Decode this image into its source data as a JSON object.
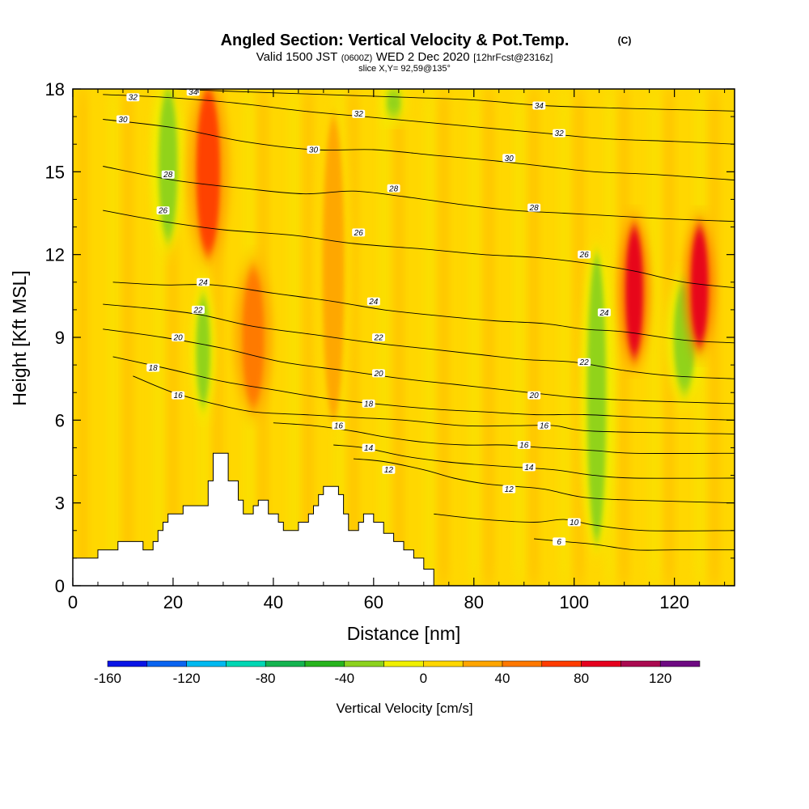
{
  "chart_data": {
    "type": "heatmap",
    "title": "Angled Section: Vertical Velocity & Pot.Temp.",
    "title_unit": "(C)",
    "subtitle_parts": [
      "Valid 1500 JST",
      "(0600Z)",
      "WED 2 Dec 2020",
      "[12hrFcst@2316z]"
    ],
    "slice_label": "slice X,Y= 92,59@135°",
    "xlabel": "Distance [nm]",
    "ylabel": "Height [Kft MSL]",
    "xlim": [
      0,
      132
    ],
    "ylim": [
      0,
      18
    ],
    "x_ticks": [
      0,
      20,
      40,
      60,
      80,
      100,
      120
    ],
    "y_ticks": [
      0,
      3,
      6,
      9,
      12,
      15,
      18
    ],
    "x_tick_labels": [
      "0",
      "20",
      "40",
      "60",
      "80",
      "100",
      "120"
    ],
    "y_tick_labels": [
      "0",
      "3",
      "6",
      "9",
      "12",
      "15",
      "18"
    ],
    "colorbar": {
      "label": "Vertical Velocity [cm/s]",
      "min": -160,
      "max": 140,
      "step": 20,
      "tick_values": [
        -160,
        -120,
        -80,
        -40,
        0,
        40,
        80,
        120
      ],
      "tick_labels": [
        "-160",
        "-120",
        "-80",
        "-40",
        "0",
        "40",
        "80",
        "120"
      ],
      "colors": [
        "#0a14e6",
        "#0a64f0",
        "#00b9f0",
        "#00d7b4",
        "#14b450",
        "#28b41e",
        "#8cd21e",
        "#f0f000",
        "#ffd700",
        "#ffa500",
        "#ff7800",
        "#ff3c00",
        "#e6001e",
        "#aa0a50",
        "#6e0a82"
      ]
    },
    "terrain_profile": [
      [
        0,
        1.0
      ],
      [
        5,
        1.0
      ],
      [
        5,
        1.3
      ],
      [
        9,
        1.3
      ],
      [
        9,
        1.6
      ],
      [
        14,
        1.6
      ],
      [
        14,
        1.3
      ],
      [
        16,
        1.3
      ],
      [
        16,
        1.6
      ],
      [
        17,
        1.6
      ],
      [
        17,
        2.0
      ],
      [
        18,
        2.0
      ],
      [
        18,
        2.3
      ],
      [
        19,
        2.3
      ],
      [
        19,
        2.6
      ],
      [
        22,
        2.6
      ],
      [
        22,
        2.9
      ],
      [
        27,
        2.9
      ],
      [
        27,
        3.8
      ],
      [
        28,
        3.8
      ],
      [
        28,
        4.8
      ],
      [
        31,
        4.8
      ],
      [
        31,
        3.8
      ],
      [
        33,
        3.8
      ],
      [
        33,
        3.1
      ],
      [
        34,
        3.1
      ],
      [
        34,
        2.6
      ],
      [
        36,
        2.6
      ],
      [
        36,
        2.9
      ],
      [
        37,
        2.9
      ],
      [
        37,
        3.1
      ],
      [
        39,
        3.1
      ],
      [
        39,
        2.6
      ],
      [
        41,
        2.6
      ],
      [
        41,
        2.3
      ],
      [
        42,
        2.3
      ],
      [
        42,
        2.0
      ],
      [
        45,
        2.0
      ],
      [
        45,
        2.3
      ],
      [
        47,
        2.3
      ],
      [
        47,
        2.6
      ],
      [
        48,
        2.6
      ],
      [
        48,
        2.9
      ],
      [
        49,
        2.9
      ],
      [
        49,
        3.3
      ],
      [
        50,
        3.3
      ],
      [
        50,
        3.6
      ],
      [
        53,
        3.6
      ],
      [
        53,
        3.3
      ],
      [
        54,
        3.3
      ],
      [
        54,
        2.6
      ],
      [
        55,
        2.6
      ],
      [
        55,
        2.0
      ],
      [
        57,
        2.0
      ],
      [
        57,
        2.3
      ],
      [
        58,
        2.3
      ],
      [
        58,
        2.6
      ],
      [
        60,
        2.6
      ],
      [
        60,
        2.3
      ],
      [
        62,
        2.3
      ],
      [
        62,
        1.9
      ],
      [
        64,
        1.9
      ],
      [
        64,
        1.6
      ],
      [
        66,
        1.6
      ],
      [
        66,
        1.3
      ],
      [
        68,
        1.3
      ],
      [
        68,
        1.0
      ],
      [
        70,
        1.0
      ],
      [
        70,
        0.6
      ],
      [
        72,
        0.6
      ],
      [
        72,
        0
      ]
    ],
    "features": [
      {
        "type": "updraft",
        "x": 27,
        "width": 3.5,
        "y_bottom": 12,
        "y_top": 18,
        "value": 70
      },
      {
        "type": "updraft",
        "x": 36,
        "width": 3,
        "y_bottom": 6.5,
        "y_top": 11.5,
        "value": 45
      },
      {
        "type": "updraft",
        "x": 52,
        "width": 3,
        "y_bottom": 6,
        "y_top": 17,
        "value": 30
      },
      {
        "type": "updraft",
        "x": 112,
        "width": 2.2,
        "y_bottom": 8.3,
        "y_top": 13,
        "value": 85
      },
      {
        "type": "updraft",
        "x": 125,
        "width": 2.2,
        "y_bottom": 8.7,
        "y_top": 13,
        "value": 85
      },
      {
        "type": "downdraft",
        "x": 19,
        "width": 2.5,
        "y_bottom": 12.5,
        "y_top": 18,
        "value": -35
      },
      {
        "type": "downdraft",
        "x": 26,
        "width": 1.5,
        "y_bottom": 6.5,
        "y_top": 10.5,
        "value": -35
      },
      {
        "type": "downdraft",
        "x": 104.5,
        "width": 2.5,
        "y_bottom": 1.6,
        "y_top": 12,
        "value": -35
      },
      {
        "type": "downdraft",
        "x": 122,
        "width": 3,
        "y_bottom": 7,
        "y_top": 11,
        "value": -30
      },
      {
        "type": "downdraft",
        "x": 64,
        "width": 1.8,
        "y_bottom": 17,
        "y_top": 18,
        "value": -25
      }
    ],
    "contours": [
      {
        "level": "6",
        "points": [
          [
            92,
            1.7
          ],
          [
            98,
            1.6
          ],
          [
            104,
            1.5
          ],
          [
            112,
            1.3
          ],
          [
            120,
            1.3
          ],
          [
            132,
            1.3
          ]
        ],
        "labels": [
          [
            97,
            1.6
          ]
        ]
      },
      {
        "level": "10",
        "points": [
          [
            72,
            2.6
          ],
          [
            82,
            2.4
          ],
          [
            92,
            2.3
          ],
          [
            98,
            2.4
          ],
          [
            104,
            2.2
          ],
          [
            114,
            2.0
          ],
          [
            132,
            2.0
          ]
        ],
        "labels": [
          [
            100,
            2.3
          ]
        ]
      },
      {
        "level": "12",
        "points": [
          [
            56,
            4.6
          ],
          [
            62,
            4.5
          ],
          [
            70,
            4.2
          ],
          [
            76,
            3.9
          ],
          [
            82,
            3.7
          ],
          [
            88,
            3.6
          ],
          [
            94,
            3.5
          ],
          [
            102,
            3.2
          ],
          [
            112,
            3.1
          ],
          [
            132,
            3.0
          ]
        ],
        "labels": [
          [
            63,
            4.2
          ],
          [
            87,
            3.5
          ]
        ]
      },
      {
        "level": "14",
        "points": [
          [
            52,
            5.1
          ],
          [
            58,
            5.0
          ],
          [
            66,
            4.7
          ],
          [
            74,
            4.5
          ],
          [
            80,
            4.4
          ],
          [
            88,
            4.3
          ],
          [
            96,
            4.2
          ],
          [
            104,
            4.0
          ],
          [
            112,
            3.9
          ],
          [
            132,
            3.9
          ]
        ],
        "labels": [
          [
            59,
            5.0
          ],
          [
            91,
            4.3
          ]
        ]
      },
      {
        "level": "16",
        "points": [
          [
            40,
            5.9
          ],
          [
            48,
            5.8
          ],
          [
            56,
            5.6
          ],
          [
            62,
            5.4
          ],
          [
            70,
            5.2
          ],
          [
            78,
            5.1
          ],
          [
            86,
            5.1
          ],
          [
            94,
            5.0
          ],
          [
            104,
            4.9
          ],
          [
            112,
            4.8
          ],
          [
            132,
            4.8
          ]
        ],
        "labels": [
          [
            53,
            5.8
          ],
          [
            90,
            5.1
          ]
        ]
      },
      {
        "level": "16",
        "points": [
          [
            12,
            7.6
          ],
          [
            20,
            7.0
          ],
          [
            28,
            6.6
          ],
          [
            36,
            6.3
          ],
          [
            46,
            6.2
          ],
          [
            56,
            6.1
          ],
          [
            66,
            6.0
          ],
          [
            78,
            5.8
          ],
          [
            88,
            5.8
          ],
          [
            96,
            5.8
          ],
          [
            104,
            5.6
          ],
          [
            132,
            5.5
          ]
        ],
        "labels": [
          [
            21,
            6.9
          ],
          [
            94,
            5.8
          ]
        ]
      },
      {
        "level": "18",
        "points": [
          [
            8,
            8.3
          ],
          [
            18,
            7.9
          ],
          [
            30,
            7.4
          ],
          [
            40,
            7.1
          ],
          [
            50,
            6.8
          ],
          [
            60,
            6.6
          ],
          [
            72,
            6.4
          ],
          [
            82,
            6.3
          ],
          [
            92,
            6.2
          ],
          [
            102,
            6.2
          ],
          [
            114,
            6.1
          ],
          [
            132,
            6.0
          ]
        ],
        "labels": [
          [
            16,
            7.9
          ],
          [
            59,
            6.6
          ]
        ]
      },
      {
        "level": "20",
        "points": [
          [
            6,
            9.3
          ],
          [
            18,
            9.0
          ],
          [
            30,
            8.6
          ],
          [
            42,
            8.1
          ],
          [
            54,
            7.8
          ],
          [
            66,
            7.5
          ],
          [
            76,
            7.3
          ],
          [
            86,
            7.1
          ],
          [
            96,
            6.9
          ],
          [
            102,
            6.8
          ],
          [
            114,
            6.7
          ],
          [
            132,
            6.6
          ]
        ],
        "labels": [
          [
            21,
            9.0
          ],
          [
            61,
            7.7
          ],
          [
            92,
            6.9
          ]
        ]
      },
      {
        "level": "22",
        "points": [
          [
            6,
            10.2
          ],
          [
            18,
            10.0
          ],
          [
            26,
            9.8
          ],
          [
            36,
            9.4
          ],
          [
            48,
            9.1
          ],
          [
            60,
            8.8
          ],
          [
            70,
            8.6
          ],
          [
            80,
            8.4
          ],
          [
            90,
            8.2
          ],
          [
            100,
            8.1
          ],
          [
            110,
            7.8
          ],
          [
            120,
            7.6
          ],
          [
            132,
            7.5
          ]
        ],
        "labels": [
          [
            25,
            10.0
          ],
          [
            61,
            9.0
          ],
          [
            102,
            8.1
          ]
        ]
      },
      {
        "level": "24",
        "points": [
          [
            8,
            11.0
          ],
          [
            18,
            10.9
          ],
          [
            28,
            10.9
          ],
          [
            40,
            10.6
          ],
          [
            52,
            10.3
          ],
          [
            62,
            10.0
          ],
          [
            72,
            9.8
          ],
          [
            84,
            9.6
          ],
          [
            94,
            9.5
          ],
          [
            102,
            9.3
          ],
          [
            110,
            9.2
          ],
          [
            122,
            8.9
          ],
          [
            132,
            8.8
          ]
        ],
        "labels": [
          [
            26,
            11.0
          ],
          [
            60,
            10.3
          ],
          [
            106,
            9.9
          ]
        ]
      },
      {
        "level": "26",
        "points": [
          [
            6,
            13.6
          ],
          [
            18,
            13.2
          ],
          [
            30,
            12.9
          ],
          [
            44,
            12.7
          ],
          [
            56,
            12.4
          ],
          [
            70,
            12.2
          ],
          [
            82,
            12.0
          ],
          [
            92,
            11.9
          ],
          [
            102,
            11.7
          ],
          [
            112,
            11.4
          ],
          [
            122,
            11.0
          ],
          [
            132,
            10.8
          ]
        ],
        "labels": [
          [
            18,
            13.6
          ],
          [
            57,
            12.8
          ],
          [
            102,
            12.0
          ]
        ]
      },
      {
        "level": "28",
        "points": [
          [
            6,
            15.2
          ],
          [
            20,
            14.7
          ],
          [
            34,
            14.4
          ],
          [
            46,
            14.2
          ],
          [
            56,
            14.3
          ],
          [
            66,
            14.1
          ],
          [
            78,
            13.8
          ],
          [
            88,
            13.6
          ],
          [
            98,
            13.5
          ],
          [
            108,
            13.4
          ],
          [
            118,
            13.3
          ],
          [
            132,
            13.2
          ]
        ],
        "labels": [
          [
            19,
            14.9
          ],
          [
            64,
            14.4
          ],
          [
            92,
            13.7
          ]
        ]
      },
      {
        "level": "30",
        "points": [
          [
            6,
            16.9
          ],
          [
            20,
            16.6
          ],
          [
            34,
            16.1
          ],
          [
            48,
            15.8
          ],
          [
            60,
            15.8
          ],
          [
            72,
            15.6
          ],
          [
            84,
            15.4
          ],
          [
            94,
            15.2
          ],
          [
            104,
            15.0
          ],
          [
            116,
            14.9
          ],
          [
            132,
            14.7
          ]
        ],
        "labels": [
          [
            10,
            16.9
          ],
          [
            48,
            15.8
          ],
          [
            87,
            15.5
          ]
        ]
      },
      {
        "level": "32",
        "points": [
          [
            6,
            17.8
          ],
          [
            18,
            17.7
          ],
          [
            32,
            17.5
          ],
          [
            46,
            17.2
          ],
          [
            58,
            17.0
          ],
          [
            70,
            16.8
          ],
          [
            82,
            16.6
          ],
          [
            94,
            16.4
          ],
          [
            106,
            16.2
          ],
          [
            120,
            16.1
          ],
          [
            132,
            16.0
          ]
        ],
        "labels": [
          [
            12,
            17.7
          ],
          [
            57,
            17.1
          ],
          [
            97,
            16.4
          ]
        ]
      },
      {
        "level": "34",
        "points": [
          [
            20,
            18.0
          ],
          [
            34,
            17.9
          ],
          [
            50,
            17.8
          ],
          [
            66,
            17.7
          ],
          [
            80,
            17.6
          ],
          [
            94,
            17.4
          ],
          [
            110,
            17.3
          ],
          [
            132,
            17.2
          ]
        ],
        "labels": [
          [
            24,
            17.9
          ],
          [
            93,
            17.4
          ]
        ]
      }
    ]
  }
}
